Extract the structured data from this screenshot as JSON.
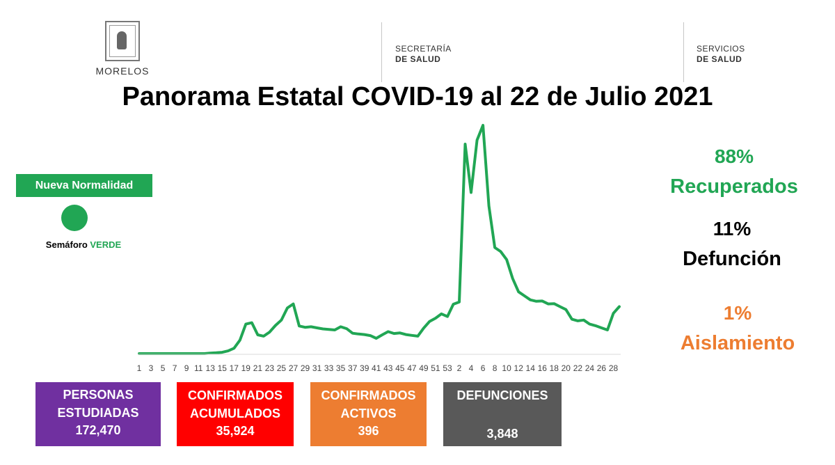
{
  "header": {
    "morelos_logo_text": "MORELOS",
    "org1": {
      "line1": "SECRETARÍA",
      "line2": "DE SALUD"
    },
    "org2": {
      "line1": "SERVICIOS",
      "line2": "DE SALUD"
    }
  },
  "title": "Panorama Estatal COVID-19 al 22 de Julio 2021",
  "status": {
    "badge": "Nueva Normalidad",
    "semaforo_label": "Semáforo",
    "semaforo_value": "VERDE",
    "semaforo_color": "#21a654"
  },
  "stats": {
    "recuperados": {
      "pct": "88%",
      "label": "Recuperados",
      "color": "#21a654"
    },
    "defuncion": {
      "pct": "11%",
      "label": "Defunción",
      "color": "#000000"
    },
    "aislamiento": {
      "pct": "1%",
      "label": "Aislamiento",
      "color": "#ed7d31"
    }
  },
  "boxes": [
    {
      "label_line1": "PERSONAS",
      "label_line2": "ESTUDIADAS",
      "value": "172,470",
      "color": "#7030a0"
    },
    {
      "label_line1": "CONFIRMADOS",
      "label_line2": "ACUMULADOS",
      "value": "35,924",
      "color": "#ff0000"
    },
    {
      "label_line1": "CONFIRMADOS",
      "label_line2": "ACTIVOS",
      "value": "396",
      "color": "#ed7d31"
    },
    {
      "label_line1": "DEFUNCIONES",
      "label_line2": "",
      "value": "3,848",
      "color": "#595959"
    }
  ],
  "chart_data": {
    "type": "line",
    "title": "",
    "xlabel": "",
    "ylabel": "",
    "grid": false,
    "line_color": "#21a654",
    "x": [
      "1",
      "2",
      "3",
      "4",
      "5",
      "6",
      "7",
      "8",
      "9",
      "10",
      "11",
      "12",
      "13",
      "14",
      "15",
      "16",
      "17",
      "18",
      "19",
      "20",
      "21",
      "22",
      "23",
      "24",
      "25",
      "26",
      "27",
      "28",
      "29",
      "30",
      "31",
      "32",
      "33",
      "34",
      "35",
      "36",
      "37",
      "38",
      "39",
      "40",
      "41",
      "42",
      "43",
      "44",
      "45",
      "46",
      "47",
      "48",
      "49",
      "50",
      "51",
      "52",
      "53",
      "1",
      "2",
      "3",
      "4",
      "5",
      "6",
      "7",
      "8",
      "9",
      "10",
      "11",
      "12",
      "13",
      "14",
      "15",
      "16",
      "17",
      "18",
      "19",
      "20",
      "21",
      "22",
      "23",
      "24",
      "25",
      "26",
      "27",
      "28",
      "29"
    ],
    "x_tick_labels": [
      "1",
      "3",
      "5",
      "7",
      "9",
      "11",
      "13",
      "15",
      "17",
      "19",
      "21",
      "23",
      "25",
      "27",
      "29",
      "31",
      "33",
      "35",
      "37",
      "39",
      "41",
      "43",
      "45",
      "47",
      "49",
      "51",
      "53",
      "2",
      "4",
      "6",
      "8",
      "10",
      "12",
      "14",
      "16",
      "18",
      "20",
      "22",
      "24",
      "26",
      "28"
    ],
    "values": [
      0,
      0,
      0,
      0,
      0,
      0,
      0,
      0,
      0,
      0,
      0,
      0,
      0.2,
      0.3,
      0.5,
      1,
      2,
      5,
      11,
      11.5,
      7,
      6.5,
      8,
      10.5,
      12.5,
      17,
      18.5,
      10.3,
      9.8,
      10,
      9.6,
      9.2,
      9,
      8.8,
      10,
      9.3,
      7.6,
      7.3,
      7.1,
      6.7,
      5.7,
      7,
      8.2,
      7.5,
      7.7,
      7.1,
      6.8,
      6.5,
      9.5,
      12,
      13.2,
      14.8,
      13.8,
      18.4,
      19.2,
      78,
      60,
      79.5,
      85,
      55,
      39.5,
      38,
      35,
      28,
      23,
      21.5,
      20,
      19.5,
      19.6,
      18.5,
      18.6,
      17.5,
      16.4,
      12.8,
      12.2,
      12.5,
      11,
      10.4,
      9.6,
      8.8,
      15,
      17.5
    ],
    "ylim": [
      0,
      85
    ]
  }
}
